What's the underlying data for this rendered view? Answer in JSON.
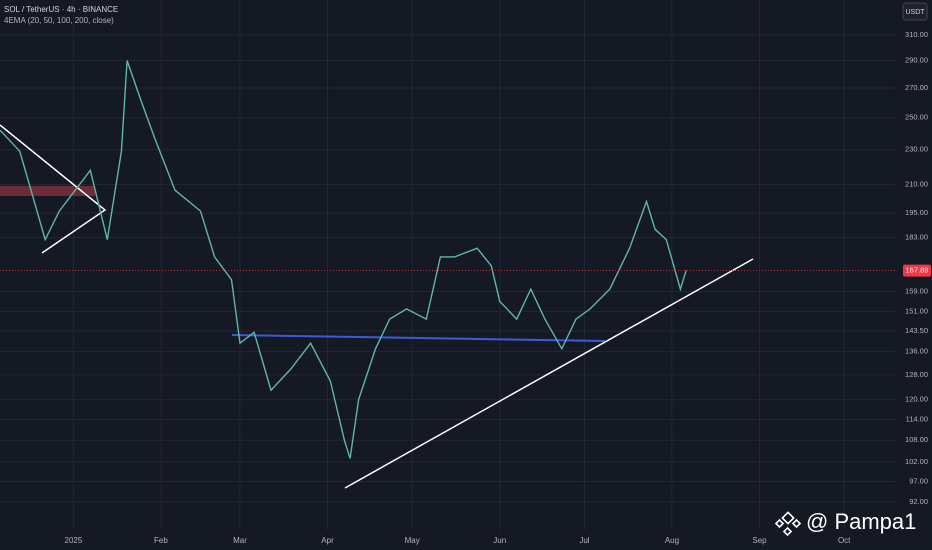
{
  "chart_data": {
    "type": "line",
    "title": "SOL / TetherUS · 4h · BINANCE",
    "subtitle": "4EMA (20, 50, 100, 200, close)",
    "currency": "USDT",
    "watermark": "@ Pampa1",
    "last_price": {
      "value": 167.89,
      "label": "167.89"
    },
    "color": "#5fb7a6",
    "last_price_color": "#f23645",
    "log_scale": true,
    "grid": true,
    "x": [
      -26,
      -19,
      -10,
      -5,
      6,
      12,
      17,
      19,
      24,
      29,
      36,
      45,
      50,
      56,
      59,
      64,
      70,
      77,
      84,
      91,
      96,
      98,
      101,
      107,
      112,
      118,
      125,
      130,
      135,
      143,
      148,
      151,
      157,
      162,
      167,
      173,
      178,
      183,
      190,
      197,
      203,
      206,
      210,
      215,
      217
    ],
    "values": [
      242,
      229,
      182,
      196,
      218,
      182,
      229,
      290,
      261,
      236,
      207,
      196,
      174,
      164,
      139,
      143,
      123,
      130,
      139,
      126,
      108,
      103,
      120,
      137,
      148,
      152,
      148,
      174,
      174,
      178,
      170,
      155,
      148,
      160,
      148,
      137,
      148,
      152,
      160,
      178,
      201,
      187,
      182,
      160,
      167.89
    ],
    "xlim": [
      -26,
      291
    ],
    "xticks": [
      {
        "value": 0,
        "label": "2025"
      },
      {
        "value": 31,
        "label": "Feb"
      },
      {
        "value": 59,
        "label": "Mar"
      },
      {
        "value": 90,
        "label": "Apr"
      },
      {
        "value": 120,
        "label": "May"
      },
      {
        "value": 151,
        "label": "Jun"
      },
      {
        "value": 181,
        "label": "Jul"
      },
      {
        "value": 212,
        "label": "Aug"
      },
      {
        "value": 243,
        "label": "Sep"
      },
      {
        "value": 273,
        "label": "Oct"
      }
    ],
    "ylim": [
      85.5,
      339.5
    ],
    "yticks": [
      {
        "value": 310,
        "label": "310.00"
      },
      {
        "value": 290,
        "label": "290.00"
      },
      {
        "value": 270,
        "label": "270.00"
      },
      {
        "value": 250,
        "label": "250.00"
      },
      {
        "value": 230,
        "label": "230.00"
      },
      {
        "value": 210,
        "label": "210.00"
      },
      {
        "value": 195,
        "label": "195.00"
      },
      {
        "value": 183,
        "label": "183.00"
      },
      {
        "value": 159,
        "label": "159.00"
      },
      {
        "value": 151,
        "label": "151.00"
      },
      {
        "value": 143.5,
        "label": "143.50"
      },
      {
        "value": 136,
        "label": "136.00"
      },
      {
        "value": 128,
        "label": "128.00"
      },
      {
        "value": 120,
        "label": "120.00"
      },
      {
        "value": 114,
        "label": "114.00"
      },
      {
        "value": 108,
        "label": "108.00"
      },
      {
        "value": 102,
        "label": "102.00"
      },
      {
        "value": 97,
        "label": "97.00"
      },
      {
        "value": 92,
        "label": "92.00"
      }
    ]
  }
}
